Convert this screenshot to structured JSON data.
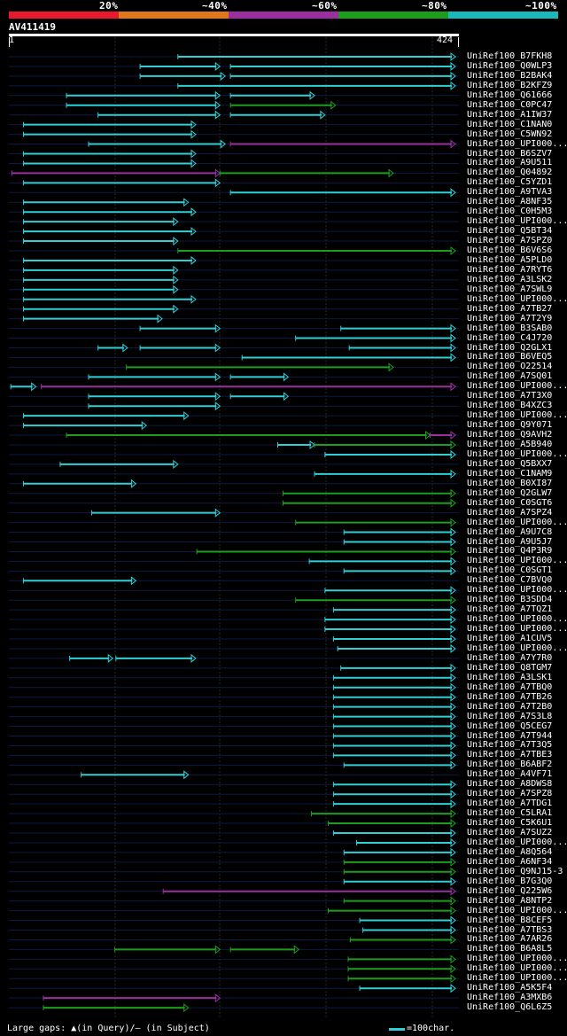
{
  "legend": {
    "colors": [
      "#e8192c",
      "#e0781b",
      "#9b2fa0",
      "#1c9e1c",
      "#18b8bb"
    ],
    "labels": [
      "20%",
      "~40%",
      "~60%",
      "~80%",
      "~100%"
    ]
  },
  "query": {
    "id": "AV411419",
    "start": "1",
    "end": "424",
    "length": 424
  },
  "hit_color": "#2ed0d6",
  "hits": [
    {
      "name": "UniRef100_B7FKH8",
      "segs": [
        [
          160,
          424,
          "c"
        ]
      ]
    },
    {
      "name": "UniRef100_Q0WLP3",
      "segs": [
        [
          124,
          200,
          "c"
        ],
        [
          210,
          424,
          "c"
        ]
      ]
    },
    {
      "name": "UniRef100_B2BAK4",
      "segs": [
        [
          124,
          205,
          "c"
        ],
        [
          210,
          424,
          "c"
        ]
      ]
    },
    {
      "name": "UniRef100_B2KFZ9",
      "segs": [
        [
          160,
          424,
          "c"
        ]
      ]
    },
    {
      "name": "UniRef100_Q61666",
      "segs": [
        [
          54,
          200,
          "c"
        ],
        [
          210,
          290,
          "c"
        ]
      ]
    },
    {
      "name": "UniRef100_C0PC47",
      "segs": [
        [
          54,
          200,
          "c"
        ],
        [
          210,
          310,
          "g"
        ]
      ]
    },
    {
      "name": "UniRef100_A1IW37",
      "segs": [
        [
          84,
          200,
          "c"
        ],
        [
          210,
          300,
          "c"
        ]
      ]
    },
    {
      "name": "UniRef100_C1NAN0",
      "segs": [
        [
          13,
          177,
          "c"
        ]
      ]
    },
    {
      "name": "UniRef100_C5WN92",
      "segs": [
        [
          13,
          177,
          "c"
        ]
      ]
    },
    {
      "name": "UniRef100_UPI000...",
      "segs": [
        [
          75,
          205,
          "c"
        ],
        [
          210,
          424,
          "m"
        ]
      ]
    },
    {
      "name": "UniRef100_B6SZV7",
      "segs": [
        [
          13,
          177,
          "c"
        ]
      ]
    },
    {
      "name": "UniRef100_A9U511",
      "segs": [
        [
          13,
          177,
          "c"
        ]
      ]
    },
    {
      "name": "UniRef100_Q04892",
      "segs": [
        [
          2,
          200,
          "m"
        ],
        [
          200,
          365,
          "g"
        ]
      ]
    },
    {
      "name": "UniRef100_C5YZD1",
      "segs": [
        [
          13,
          200,
          "c"
        ]
      ]
    },
    {
      "name": "UniRef100_A9TVA3",
      "segs": [
        [
          210,
          424,
          "c"
        ]
      ]
    },
    {
      "name": "UniRef100_A8NF35",
      "segs": [
        [
          13,
          170,
          "c"
        ]
      ]
    },
    {
      "name": "UniRef100_C0H5M3",
      "segs": [
        [
          13,
          177,
          "c"
        ]
      ]
    },
    {
      "name": "UniRef100_UPI000...",
      "segs": [
        [
          13,
          160,
          "c"
        ]
      ]
    },
    {
      "name": "UniRef100_Q5BT34",
      "segs": [
        [
          13,
          177,
          "c"
        ]
      ]
    },
    {
      "name": "UniRef100_A7SPZ0",
      "segs": [
        [
          13,
          160,
          "c"
        ]
      ]
    },
    {
      "name": "UniRef100_B6V6S6",
      "segs": [
        [
          160,
          424,
          "g"
        ]
      ]
    },
    {
      "name": "UniRef100_A5PLD0",
      "segs": [
        [
          13,
          177,
          "c"
        ]
      ]
    },
    {
      "name": "UniRef100_A7RYT6",
      "segs": [
        [
          13,
          160,
          "c"
        ]
      ]
    },
    {
      "name": "UniRef100_A3LSK2",
      "segs": [
        [
          13,
          160,
          "c"
        ]
      ]
    },
    {
      "name": "UniRef100_A7SWL9",
      "segs": [
        [
          13,
          160,
          "c"
        ]
      ]
    },
    {
      "name": "UniRef100_UPI000...",
      "segs": [
        [
          13,
          177,
          "c"
        ]
      ]
    },
    {
      "name": "UniRef100_A7TB27",
      "segs": [
        [
          13,
          160,
          "c"
        ]
      ]
    },
    {
      "name": "UniRef100_A7T2Y9",
      "segs": [
        [
          13,
          145,
          "c"
        ]
      ]
    },
    {
      "name": "UniRef100_B3SAB0",
      "segs": [
        [
          124,
          200,
          "c"
        ],
        [
          315,
          424,
          "c"
        ]
      ]
    },
    {
      "name": "UniRef100_C4J720",
      "segs": [
        [
          272,
          424,
          "c"
        ]
      ]
    },
    {
      "name": "UniRef100_Q2GLX1",
      "segs": [
        [
          84,
          112,
          "c"
        ],
        [
          124,
          200,
          "c"
        ],
        [
          323,
          424,
          "c"
        ]
      ]
    },
    {
      "name": "UniRef100_B6VEQ5",
      "segs": [
        [
          221,
          424,
          "c"
        ]
      ]
    },
    {
      "name": "UniRef100_O22514",
      "segs": [
        [
          111,
          365,
          "g"
        ]
      ]
    },
    {
      "name": "UniRef100_A7SQ01",
      "segs": [
        [
          75,
          200,
          "c"
        ],
        [
          210,
          265,
          "c"
        ]
      ]
    },
    {
      "name": "UniRef100_UPI000...",
      "segs": [
        [
          1,
          25,
          "c"
        ],
        [
          30,
          424,
          "m"
        ]
      ]
    },
    {
      "name": "UniRef100_A7T3X0",
      "segs": [
        [
          75,
          200,
          "c"
        ],
        [
          210,
          265,
          "c"
        ]
      ]
    },
    {
      "name": "UniRef100_B4XZC3",
      "segs": [
        [
          75,
          200,
          "c"
        ]
      ]
    },
    {
      "name": "UniRef100_UPI000...",
      "segs": [
        [
          13,
          170,
          "c"
        ]
      ]
    },
    {
      "name": "UniRef100_Q9Y071",
      "segs": [
        [
          13,
          130,
          "c"
        ]
      ]
    },
    {
      "name": "UniRef100_Q9AVH2",
      "segs": [
        [
          54,
          400,
          "g"
        ],
        [
          400,
          424,
          "m"
        ]
      ]
    },
    {
      "name": "UniRef100_A5B940",
      "segs": [
        [
          255,
          290,
          "c"
        ],
        [
          290,
          424,
          "g"
        ]
      ]
    },
    {
      "name": "UniRef100_UPI000...",
      "segs": [
        [
          300,
          424,
          "c"
        ]
      ]
    },
    {
      "name": "UniRef100_Q5BXX7",
      "segs": [
        [
          48,
          160,
          "c"
        ]
      ]
    },
    {
      "name": "UniRef100_C1NAM9",
      "segs": [
        [
          290,
          424,
          "c"
        ]
      ]
    },
    {
      "name": "UniRef100_B0XI87",
      "segs": [
        [
          13,
          120,
          "c"
        ]
      ]
    },
    {
      "name": "UniRef100_Q2GLW7",
      "segs": [
        [
          260,
          424,
          "g"
        ]
      ]
    },
    {
      "name": "UniRef100_C0SGT6",
      "segs": [
        [
          260,
          424,
          "g"
        ]
      ]
    },
    {
      "name": "UniRef100_A7SPZ4",
      "segs": [
        [
          78,
          200,
          "c"
        ]
      ]
    },
    {
      "name": "UniRef100_UPI000...",
      "segs": [
        [
          272,
          424,
          "g"
        ]
      ]
    },
    {
      "name": "UniRef100_A9U7C8",
      "segs": [
        [
          318,
          424,
          "c"
        ]
      ]
    },
    {
      "name": "UniRef100_A9U5J7",
      "segs": [
        [
          318,
          424,
          "c"
        ]
      ]
    },
    {
      "name": "UniRef100_Q4P3R9",
      "segs": [
        [
          178,
          424,
          "g"
        ]
      ]
    },
    {
      "name": "UniRef100_UPI000...",
      "segs": [
        [
          285,
          424,
          "c"
        ]
      ]
    },
    {
      "name": "UniRef100_C0SGT1",
      "segs": [
        [
          318,
          424,
          "c"
        ]
      ]
    },
    {
      "name": "UniRef100_C7BVQ0",
      "segs": [
        [
          13,
          120,
          "c"
        ]
      ]
    },
    {
      "name": "UniRef100_UPI000...",
      "segs": [
        [
          300,
          424,
          "c"
        ]
      ]
    },
    {
      "name": "UniRef100_B3SDD4",
      "segs": [
        [
          272,
          424,
          "g"
        ]
      ]
    },
    {
      "name": "UniRef100_A7TQZ1",
      "segs": [
        [
          308,
          424,
          "c"
        ]
      ]
    },
    {
      "name": "UniRef100_UPI000...",
      "segs": [
        [
          300,
          424,
          "c"
        ]
      ]
    },
    {
      "name": "UniRef100_UPI000...",
      "segs": [
        [
          300,
          424,
          "c"
        ]
      ]
    },
    {
      "name": "UniRef100_A1CUV5",
      "segs": [
        [
          308,
          424,
          "c"
        ]
      ]
    },
    {
      "name": "UniRef100_UPI000...",
      "segs": [
        [
          312,
          424,
          "c"
        ]
      ]
    },
    {
      "name": "UniRef100_A7Y7R0",
      "segs": [
        [
          57,
          98,
          "c"
        ],
        [
          101,
          177,
          "c"
        ]
      ]
    },
    {
      "name": "UniRef100_Q8TGM7",
      "segs": [
        [
          315,
          424,
          "c"
        ]
      ]
    },
    {
      "name": "UniRef100_A3LSK1",
      "segs": [
        [
          308,
          424,
          "c"
        ]
      ]
    },
    {
      "name": "UniRef100_A7TBQ0",
      "segs": [
        [
          308,
          424,
          "c"
        ]
      ]
    },
    {
      "name": "UniRef100_A7TB26",
      "segs": [
        [
          308,
          424,
          "c"
        ]
      ]
    },
    {
      "name": "UniRef100_A7T2B0",
      "segs": [
        [
          308,
          424,
          "c"
        ]
      ]
    },
    {
      "name": "UniRef100_A7S3L8",
      "segs": [
        [
          308,
          424,
          "c"
        ]
      ]
    },
    {
      "name": "UniRef100_Q5CEG7",
      "segs": [
        [
          308,
          424,
          "c"
        ]
      ]
    },
    {
      "name": "UniRef100_A7T944",
      "segs": [
        [
          308,
          424,
          "c"
        ]
      ]
    },
    {
      "name": "UniRef100_A7T3Q5",
      "segs": [
        [
          308,
          424,
          "c"
        ]
      ]
    },
    {
      "name": "UniRef100_A7TBE3",
      "segs": [
        [
          308,
          424,
          "c"
        ]
      ]
    },
    {
      "name": "UniRef100_B6ABF2",
      "segs": [
        [
          318,
          424,
          "c"
        ]
      ]
    },
    {
      "name": "UniRef100_A4VF71",
      "segs": [
        [
          68,
          170,
          "c"
        ]
      ]
    },
    {
      "name": "UniRef100_A8DWS8",
      "segs": [
        [
          308,
          424,
          "c"
        ]
      ]
    },
    {
      "name": "UniRef100_A7SPZ8",
      "segs": [
        [
          308,
          424,
          "c"
        ]
      ]
    },
    {
      "name": "UniRef100_A7TDG1",
      "segs": [
        [
          308,
          424,
          "c"
        ]
      ]
    },
    {
      "name": "UniRef100_C5LRA1",
      "segs": [
        [
          287,
          424,
          "g"
        ]
      ]
    },
    {
      "name": "UniRef100_C5K6U1",
      "segs": [
        [
          303,
          424,
          "g"
        ]
      ]
    },
    {
      "name": "UniRef100_A7SUZ2",
      "segs": [
        [
          308,
          424,
          "c"
        ]
      ]
    },
    {
      "name": "UniRef100_UPI000...",
      "segs": [
        [
          330,
          424,
          "c"
        ]
      ]
    },
    {
      "name": "UniRef100_A8Q564",
      "segs": [
        [
          318,
          424,
          "c"
        ]
      ]
    },
    {
      "name": "UniRef100_A6NF34",
      "segs": [
        [
          318,
          424,
          "g"
        ]
      ]
    },
    {
      "name": "UniRef100_Q9NJ15-3",
      "segs": [
        [
          318,
          424,
          "g"
        ]
      ]
    },
    {
      "name": "UniRef100_B7G3Q0",
      "segs": [
        [
          318,
          424,
          "c"
        ]
      ]
    },
    {
      "name": "UniRef100_Q225W6",
      "segs": [
        [
          146,
          424,
          "m"
        ]
      ]
    },
    {
      "name": "UniRef100_A8NTP2",
      "segs": [
        [
          318,
          424,
          "g"
        ]
      ]
    },
    {
      "name": "UniRef100_UPI000...",
      "segs": [
        [
          303,
          424,
          "g"
        ]
      ]
    },
    {
      "name": "UniRef100_B8CEF5",
      "segs": [
        [
          333,
          424,
          "c"
        ]
      ]
    },
    {
      "name": "UniRef100_A7TBS3",
      "segs": [
        [
          336,
          424,
          "c"
        ]
      ]
    },
    {
      "name": "UniRef100_A7AR26",
      "segs": [
        [
          324,
          424,
          "g"
        ]
      ]
    },
    {
      "name": "UniRef100_B6A8L5",
      "segs": [
        [
          100,
          200,
          "g"
        ],
        [
          210,
          275,
          "g"
        ]
      ]
    },
    {
      "name": "UniRef100_UPI000...",
      "segs": [
        [
          322,
          424,
          "g"
        ]
      ]
    },
    {
      "name": "UniRef100_UPI000...",
      "segs": [
        [
          322,
          424,
          "g"
        ]
      ]
    },
    {
      "name": "UniRef100_UPI000...",
      "segs": [
        [
          322,
          424,
          "g"
        ]
      ]
    },
    {
      "name": "UniRef100_A5K5F4",
      "segs": [
        [
          333,
          424,
          "c"
        ]
      ]
    },
    {
      "name": "UniRef100_A3MXB6",
      "segs": [
        [
          32,
          200,
          "m"
        ]
      ]
    },
    {
      "name": "UniRef100_Q6L6Z5",
      "segs": [
        [
          32,
          170,
          "g"
        ]
      ]
    }
  ],
  "footer": {
    "gaps_note": "Large gaps: ▲(in Query)/– (in Subject)",
    "scale_note": "=100char."
  }
}
